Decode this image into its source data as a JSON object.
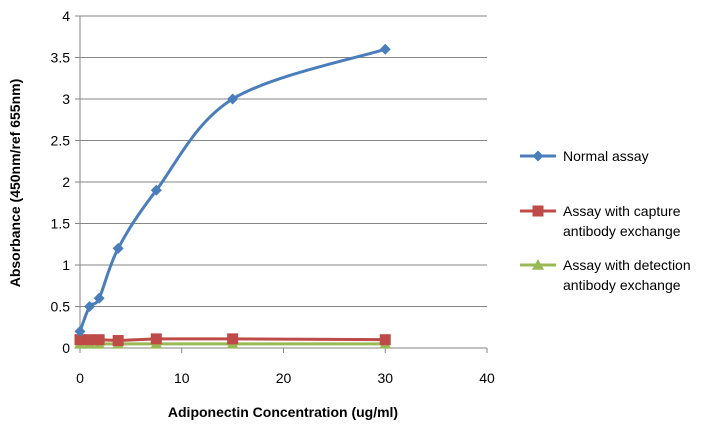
{
  "chart_data": {
    "type": "scatter",
    "xlabel": "Adiponectin Concentration (ug/ml)",
    "ylabel": "Absorbance (450nm/ref 655nm)",
    "xlim": [
      0,
      40
    ],
    "ylim": [
      0,
      4
    ],
    "x_ticks": [
      "0",
      "10",
      "20",
      "30",
      "40"
    ],
    "y_ticks": [
      "0",
      "0.5",
      "1",
      "1.5",
      "2",
      "2.5",
      "3",
      "3.5",
      "4"
    ],
    "grid": "horizontal",
    "legend_position": "right",
    "series": [
      {
        "name": "Normal assay",
        "color": "#4a7ebb",
        "marker": "diamond",
        "smooth": true,
        "points": [
          {
            "x": 0,
            "y": 0.2
          },
          {
            "x": 0.94,
            "y": 0.5
          },
          {
            "x": 1.88,
            "y": 0.6
          },
          {
            "x": 3.75,
            "y": 1.2
          },
          {
            "x": 7.5,
            "y": 1.9
          },
          {
            "x": 15,
            "y": 3.0
          },
          {
            "x": 30,
            "y": 3.6
          }
        ]
      },
      {
        "name": "Assay with capture antibody exchange",
        "name_lines": [
          "Assay with capture",
          "antibody exchange"
        ],
        "color": "#be4b48",
        "marker": "square",
        "smooth": false,
        "points": [
          {
            "x": 0,
            "y": 0.1
          },
          {
            "x": 0.94,
            "y": 0.1
          },
          {
            "x": 1.88,
            "y": 0.1
          },
          {
            "x": 3.75,
            "y": 0.09
          },
          {
            "x": 7.5,
            "y": 0.11
          },
          {
            "x": 15,
            "y": 0.11
          },
          {
            "x": 30,
            "y": 0.1
          }
        ]
      },
      {
        "name": "Assay with detection antibody exchange",
        "name_lines": [
          "Assay with detection",
          "antibody exchange"
        ],
        "color": "#98b954",
        "marker": "triangle",
        "smooth": false,
        "points": [
          {
            "x": 0,
            "y": 0.05
          },
          {
            "x": 0.94,
            "y": 0.05
          },
          {
            "x": 1.88,
            "y": 0.05
          },
          {
            "x": 3.75,
            "y": 0.05
          },
          {
            "x": 7.5,
            "y": 0.05
          },
          {
            "x": 15,
            "y": 0.05
          },
          {
            "x": 30,
            "y": 0.05
          }
        ]
      }
    ]
  }
}
